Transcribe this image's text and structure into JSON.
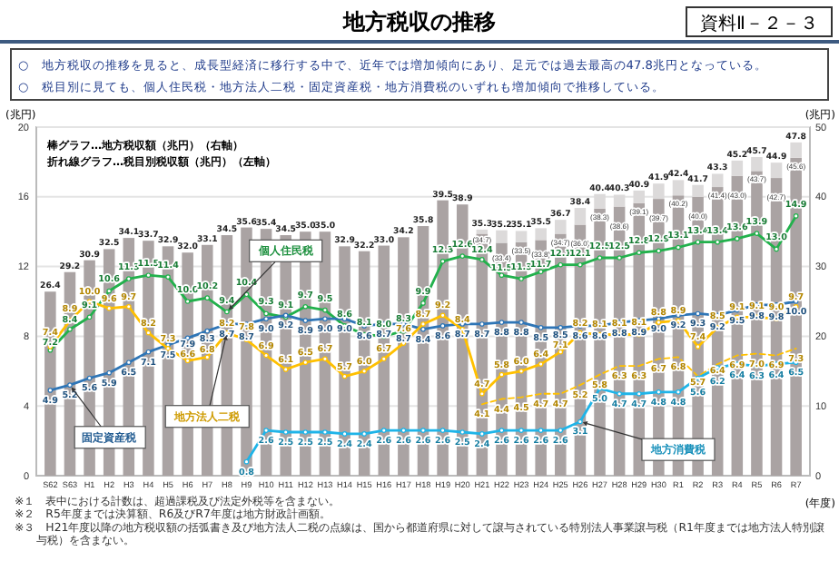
{
  "chart_data": {
    "type": "bar",
    "title": "地方税収の推移",
    "subtitle": "○　地方税収の推移を見ると、成長型経済に移行する中で、近年では増加傾向にあり、足元では過去最高の47.8兆円となっている。",
    "annotations": [
      "○　税目別に見ても、個人住民税・地方法人二税・固定資産税・地方消費税のいずれも増加傾向で推移している。",
      "資料Ⅱ－２－３",
      "棒グラフ…地方税収額（兆円）（右軸）",
      "折れ線グラフ…税目別税収額（兆円）（左軸）",
      "※１　表中における計数は、超過課税及び法定外税等を含まない。",
      "※２　R5年度までは決算額、R6及びR7年度は地方財政計画額。",
      "※３　H21年度以降の地方税収額の括弧書き及び地方法人二税の点線は、国から都道府県に対して譲与されている特別法人事業譲与税（R1年度までは地方法人特別譲与税）を含まない。"
    ],
    "xlabel": "(年度)",
    "ylabel": "(兆円)",
    "y2label": "(兆円)",
    "categories": [
      "S62",
      "S63",
      "H1",
      "H2",
      "H3",
      "H4",
      "H5",
      "H6",
      "H7",
      "H8",
      "H9",
      "H10",
      "H11",
      "H12",
      "H13",
      "H14",
      "H15",
      "H16",
      "H17",
      "H18",
      "H19",
      "H20",
      "H21",
      "H22",
      "H23",
      "H24",
      "H25",
      "H26",
      "H27",
      "H28",
      "H29",
      "H30",
      "R1",
      "R2",
      "R3",
      "R4",
      "R5",
      "R6",
      "R7"
    ],
    "stacked": true,
    "series": [
      {
        "axis": "y2",
        "color": "#aaa3a3",
        "values": [
          26.4,
          29.2,
          30.9,
          32.5,
          34.1,
          33.7,
          32.9,
          32.0,
          33.1,
          34.5,
          35.6,
          35.4,
          34.5,
          35.0,
          35.0,
          32.9,
          32.2,
          33.0,
          34.2,
          35.8,
          39.5,
          38.9,
          34.7,
          33.4,
          33.5,
          33.8,
          34.7,
          36.0,
          38.3,
          38.6,
          39.1,
          39.7,
          40.2,
          40.0,
          41.4,
          43.0,
          43.7,
          42.7,
          45.6
        ],
        "value_labels": [
          null,
          null,
          null,
          null,
          null,
          null,
          null,
          null,
          null,
          null,
          null,
          null,
          null,
          null,
          null,
          null,
          null,
          null,
          null,
          null,
          null,
          null,
          "(34.7)",
          "(33.4)",
          "(33.5)",
          "(33.8)",
          "(34.7)",
          "(36.0)",
          "(38.3)",
          "(38.6)",
          "(39.1)",
          "(39.7)",
          "(40.2)",
          "(40.0)",
          "(41.4)",
          "(43.0)",
          "(43.7)",
          "(42.7)",
          "(45.6)"
        ]
      },
      {
        "axis": "y2",
        "color": "#dcdada",
        "values": [
          null,
          null,
          null,
          null,
          null,
          null,
          null,
          null,
          null,
          null,
          null,
          null,
          null,
          null,
          null,
          null,
          null,
          null,
          null,
          null,
          null,
          null,
          0.6,
          1.8,
          1.6,
          1.7,
          2.0,
          2.4,
          2.1,
          1.7,
          1.8,
          2.2,
          2.2,
          1.7,
          1.9,
          2.2,
          2.0,
          2.2,
          2.2
        ]
      },
      {
        "type": "line",
        "name": "個人住民税",
        "color": "#22b14c",
        "values": [
          7.2,
          8.4,
          9.1,
          10.6,
          11.3,
          11.5,
          11.4,
          10.0,
          10.2,
          9.4,
          10.4,
          9.3,
          9.1,
          9.7,
          9.5,
          8.6,
          8.1,
          8.0,
          8.3,
          9.9,
          12.3,
          12.6,
          12.4,
          11.5,
          11.3,
          11.7,
          12.1,
          12.1,
          12.5,
          12.5,
          12.8,
          12.9,
          13.1,
          13.4,
          13.4,
          13.6,
          13.9,
          13.0,
          14.9
        ],
        "value_labels": [
          "7.2",
          "8.4",
          "9.1",
          "10.6",
          "11.3",
          "11.5",
          "11.4",
          "10.0",
          "10.2",
          "9.4",
          "10.4",
          "9.3",
          "9.1",
          "9.7",
          "9.5",
          "8.6",
          "8.1",
          "8.0",
          "8.3",
          "9.9",
          "12.3",
          "12.6",
          "12.4",
          "11.5",
          "11.3",
          "11.7",
          "12.1",
          "12.1",
          "12.5",
          "12.5",
          "12.8",
          "12.9",
          "13.1",
          "13.4",
          "13.4",
          "13.6",
          "13.9",
          "13.0",
          "14.9"
        ]
      },
      {
        "type": "line",
        "name": "固定資産税",
        "color": "#2e75b6",
        "values": [
          4.9,
          5.2,
          5.6,
          5.9,
          6.5,
          7.1,
          7.5,
          7.9,
          8.3,
          8.7,
          8.7,
          9.0,
          9.2,
          8.9,
          9.0,
          9.0,
          8.6,
          8.7,
          8.7,
          8.4,
          8.6,
          8.7,
          8.7,
          8.8,
          8.8,
          8.5,
          8.5,
          8.6,
          8.6,
          8.8,
          8.9,
          9.0,
          9.2,
          9.3,
          9.2,
          9.5,
          9.8,
          9.8,
          10.0
        ],
        "value_labels": [
          "4.9",
          "5.2",
          "5.6",
          "5.9",
          "6.5",
          "7.1",
          "7.5",
          "7.9",
          "8.3",
          "8.7",
          "8.7",
          "9.0",
          "9.2",
          "8.9",
          "9.0",
          "9.0",
          "8.6",
          "8.7",
          "8.7",
          "8.4",
          "8.6",
          "8.7",
          "8.7",
          "8.8",
          "8.8",
          "8.5",
          "8.5",
          "8.6",
          "8.6",
          "8.8",
          "8.9",
          "9.0",
          "9.2",
          "9.3",
          "9.2",
          "9.5",
          "9.8",
          "9.8",
          "10.0"
        ]
      },
      {
        "type": "line",
        "name": "地方法人二税",
        "color": "#ffc000",
        "values": [
          7.4,
          8.9,
          10.0,
          9.6,
          9.7,
          8.2,
          7.3,
          6.6,
          6.8,
          8.2,
          7.8,
          6.9,
          6.1,
          6.5,
          6.7,
          5.7,
          6.0,
          6.7,
          7.6,
          8.7,
          9.2,
          8.4,
          4.7,
          5.8,
          6.0,
          6.4,
          7.1,
          8.2,
          8.1,
          8.1,
          8.1,
          8.8,
          8.9,
          7.4,
          8.5,
          9.1,
          9.1,
          9.0,
          9.7
        ],
        "value_labels": [
          "7.4",
          "8.9",
          "10.0",
          "9.6",
          "9.7",
          "8.2",
          "7.3",
          "6.6",
          "6.8",
          "8.2",
          "7.8",
          "6.9",
          "6.1",
          "6.5",
          "6.7",
          "5.7",
          "6.0",
          "6.7",
          "7.6",
          "8.7",
          "9.2",
          "8.4",
          "4.7",
          "5.8",
          "6.0",
          "6.4",
          "7.1",
          "8.2",
          "8.1",
          "8.1",
          "8.1",
          "8.8",
          "8.9",
          "7.4",
          "8.5",
          "9.1",
          "9.1",
          "9.0",
          "9.7"
        ]
      },
      {
        "type": "line",
        "line_style": "dashed",
        "marker": "none",
        "color": "#ffc000",
        "values": [
          null,
          null,
          null,
          null,
          null,
          null,
          null,
          null,
          null,
          null,
          null,
          null,
          null,
          null,
          null,
          null,
          null,
          null,
          null,
          null,
          null,
          null,
          4.1,
          4.4,
          4.5,
          4.7,
          4.7,
          5.2,
          5.8,
          6.3,
          6.3,
          6.7,
          6.8,
          5.7,
          6.4,
          6.9,
          7.0,
          6.9,
          7.3
        ],
        "value_labels": [
          null,
          null,
          null,
          null,
          null,
          null,
          null,
          null,
          null,
          null,
          null,
          null,
          null,
          null,
          null,
          null,
          null,
          null,
          null,
          null,
          null,
          null,
          "4.1",
          "4.4",
          "4.5",
          "4.7",
          "4.7",
          "5.2",
          "5.8",
          "6.3",
          "6.3",
          "6.7",
          "6.8",
          "5.7",
          "6.4",
          "6.9",
          "7.0",
          "6.9",
          "7.3"
        ]
      },
      {
        "type": "line",
        "name": "地方消費税",
        "color": "#1fb4e8",
        "values": [
          null,
          null,
          null,
          null,
          null,
          null,
          null,
          null,
          null,
          null,
          0.8,
          2.6,
          2.5,
          2.5,
          2.5,
          2.4,
          2.4,
          2.6,
          2.6,
          2.6,
          2.6,
          2.5,
          2.4,
          2.6,
          2.6,
          2.6,
          2.6,
          3.1,
          5.0,
          4.7,
          4.7,
          4.8,
          4.8,
          5.6,
          6.2,
          6.4,
          6.3,
          6.4,
          6.5
        ],
        "value_labels": [
          null,
          null,
          null,
          null,
          null,
          null,
          null,
          null,
          null,
          null,
          "0.8",
          "2.6",
          "2.5",
          "2.5",
          "2.5",
          "2.4",
          "2.4",
          "2.6",
          "2.6",
          "2.6",
          "2.6",
          "2.5",
          "2.4",
          "2.6",
          "2.6",
          "2.6",
          "2.6",
          "3.1",
          "5.0",
          "4.7",
          "4.7",
          "4.8",
          "4.8",
          "5.6",
          "6.2",
          "6.4",
          "6.3",
          "6.4",
          "6.5"
        ]
      }
    ],
    "totals": [
      "26.4",
      "29.2",
      "30.9",
      "32.5",
      "34.1",
      "33.7",
      "32.9",
      "32.0",
      "33.1",
      "34.5",
      "35.6",
      "35.4",
      "34.5",
      "35.0",
      "35.0",
      "32.9",
      "32.2",
      "33.0",
      "34.2",
      "35.8",
      "39.5",
      "38.9",
      "35.3",
      "35.2",
      "35.1",
      "35.5",
      "36.7",
      "38.4",
      "40.4",
      "40.3",
      "40.9",
      "41.9",
      "42.4",
      "41.7",
      "43.3",
      "45.2",
      "45.7",
      "44.9",
      "47.8"
    ],
    "ylim": [
      0,
      20
    ],
    "yticks": [
      0,
      4,
      8,
      12,
      16,
      20
    ],
    "y2lim": [
      0,
      50
    ],
    "y2ticks": [
      0,
      10,
      20,
      30,
      40,
      50
    ],
    "grid": "y",
    "marker": "circle",
    "line_style": "solid"
  }
}
